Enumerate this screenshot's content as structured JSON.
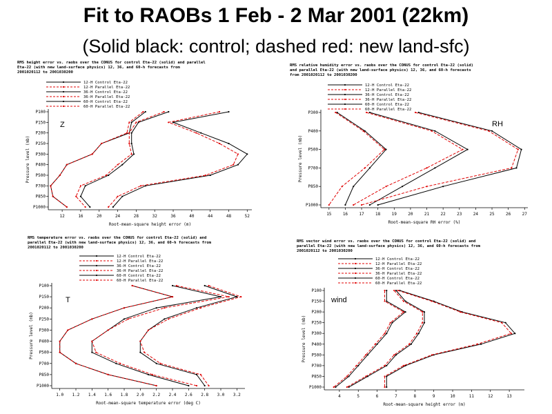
{
  "title": "Fit to RAOBs 1 Feb - 2 Mar 2001 (22km)",
  "subtitle": "(Solid black: control; dashed red: new land-sfc)",
  "colors": {
    "control": "#000000",
    "parallel": "#e00000"
  },
  "legend_labels": [
    "12-H Control Eta-22",
    "12-H Parallel Eta-22",
    "36-H Control Eta-22",
    "36-H Parallel Eta-22",
    "60-H Control Eta-22",
    "60-H Parallel Eta-22"
  ],
  "chart_data": [
    {
      "type": "line",
      "panel_label": "Z",
      "header": [
        "RMS height error vs. raobs over the CONUS for control Eta-22 (solid) and parallel",
        "Eta-22 (with new land-surface physics) 12, 36, and 60-h forecasts from",
        "2001020112 to 2001030200"
      ],
      "xlabel": "Root-mean-square height error (m)",
      "ylabel": "Pressure level (mb)",
      "x_ticks": [
        12,
        16,
        20,
        24,
        28,
        32,
        36,
        40,
        44,
        48,
        52
      ],
      "xlim": [
        9,
        53
      ],
      "y_ticks": [
        "P100",
        "P150",
        "P200",
        "P250",
        "P300",
        "P400",
        "P500",
        "P700",
        "P850",
        "P1000"
      ],
      "series": [
        {
          "name": "12-H Control Eta-22",
          "kind": "control",
          "values": [
            30,
            27,
            26.5,
            20.5,
            18.5,
            13,
            11.5,
            9.5,
            10,
            13
          ]
        },
        {
          "name": "12-H Parallel Eta-22",
          "kind": "parallel",
          "values": [
            29.5,
            26.5,
            26,
            20.5,
            18.5,
            13,
            11.5,
            9.5,
            10,
            13
          ]
        },
        {
          "name": "36-H Control Eta-22",
          "kind": "control",
          "values": [
            35,
            28.5,
            27,
            27,
            27.5,
            25,
            22,
            17,
            16,
            18
          ]
        },
        {
          "name": "36-H Parallel Eta-22",
          "kind": "parallel",
          "values": [
            34,
            28,
            26.5,
            26.5,
            27,
            24,
            21.5,
            16,
            15,
            17
          ]
        },
        {
          "name": "60-H Control Eta-22",
          "kind": "control",
          "values": [
            48,
            36,
            42,
            48,
            52,
            50,
            44,
            30,
            25,
            23
          ]
        },
        {
          "name": "60-H Parallel Eta-22",
          "kind": "parallel",
          "values": [
            46,
            35,
            41,
            46,
            50,
            49,
            43,
            29,
            24,
            22
          ]
        }
      ]
    },
    {
      "type": "line",
      "panel_label": "RH",
      "header": [
        "RMS relative humidity error vs. raobs over the CONUS for control Eta-22 (solid)",
        "and parallel Eta-22 (with new land-surface physics) 12, 36, and 60-h forecasts",
        "from 2001020112 to 2001030200"
      ],
      "xlabel": "Root-mean-square RH error (%)",
      "ylabel": "Pressure level (mb)",
      "x_ticks": [
        15,
        16,
        17,
        18,
        19,
        20,
        21,
        22,
        23,
        24,
        25,
        26,
        27
      ],
      "xlim": [
        14.5,
        27.2
      ],
      "y_ticks": [
        "P300",
        "P400",
        "P500",
        "P700",
        "P850",
        "P1000"
      ],
      "series": [
        {
          "name": "12-H Control Eta-22",
          "kind": "control",
          "values": [
            15.5,
            17.2,
            18.5,
            17.5,
            16.5,
            16
          ]
        },
        {
          "name": "12-H Parallel Eta-22",
          "kind": "parallel",
          "values": [
            15.4,
            17.1,
            18.4,
            17.2,
            15.8,
            15
          ]
        },
        {
          "name": "36-H Control Eta-22",
          "kind": "control",
          "values": [
            17.5,
            21.5,
            23.5,
            21.5,
            19.5,
            17.5
          ]
        },
        {
          "name": "36-H Parallel Eta-22",
          "kind": "parallel",
          "values": [
            17.3,
            21.3,
            23.2,
            21,
            18.5,
            16.5
          ]
        },
        {
          "name": "60-H Control Eta-22",
          "kind": "control",
          "values": [
            20.5,
            25,
            26.8,
            26.5,
            22,
            18
          ]
        },
        {
          "name": "60-H Parallel Eta-22",
          "kind": "parallel",
          "values": [
            20.3,
            24.8,
            26.6,
            26.2,
            21,
            17
          ]
        }
      ]
    },
    {
      "type": "line",
      "panel_label": "T",
      "header": [
        "RMS temperature error vs. raobs over the CONUS for control Eta-22 (solid) and",
        "parallel Eta-22 (with new land-surface physics) 12, 36, and 60-h forecasts from",
        "2001020112 to 2001030200"
      ],
      "xlabel": "Root-mean-square temperature error (deg C)",
      "ylabel": "Pressure level (mb)",
      "x_ticks": [
        "1.0",
        "1.2",
        "1.4",
        "1.6",
        "1.8",
        "2.0",
        "2.2",
        "2.4",
        "2.6",
        "2.8",
        "3.0",
        "3.2"
      ],
      "xlim": [
        0.9,
        3.3
      ],
      "y_ticks": [
        "P100",
        "P150",
        "P200",
        "P250",
        "P300",
        "P400",
        "P500",
        "P700",
        "P850",
        "P1000"
      ],
      "series": [
        {
          "name": "12-H Control Eta-22",
          "kind": "control",
          "values": [
            1.9,
            2.4,
            1.8,
            1.4,
            1.1,
            1.0,
            1.0,
            1.2,
            1.6,
            2.2
          ]
        },
        {
          "name": "12-H Parallel Eta-22",
          "kind": "parallel",
          "values": [
            1.9,
            2.4,
            1.8,
            1.4,
            1.1,
            1.0,
            1.0,
            1.2,
            1.6,
            2.2
          ]
        },
        {
          "name": "36-H Control Eta-22",
          "kind": "control",
          "values": [
            2.4,
            3.0,
            2.2,
            1.8,
            1.6,
            1.4,
            1.4,
            1.7,
            2.1,
            2.6
          ]
        },
        {
          "name": "36-H Parallel Eta-22",
          "kind": "parallel",
          "values": [
            2.45,
            3.1,
            2.3,
            1.85,
            1.6,
            1.4,
            1.45,
            1.75,
            2.15,
            2.7
          ]
        },
        {
          "name": "60-H Control Eta-22",
          "kind": "control",
          "values": [
            2.8,
            3.2,
            2.7,
            2.3,
            2.1,
            2.0,
            2.0,
            2.2,
            2.7,
            2.8
          ]
        },
        {
          "name": "60-H Parallel Eta-22",
          "kind": "parallel",
          "values": [
            2.85,
            3.25,
            2.75,
            2.35,
            2.1,
            2.0,
            2.05,
            2.25,
            2.75,
            2.85
          ]
        }
      ]
    },
    {
      "type": "line",
      "panel_label": "wind",
      "header": [
        "RMS vector wind error vs. raobs over the CONUS for control Eta-22 (solid) and",
        "parallel Eta-22 (with new land-surface physics) 12, 36, and 60-h forecasts from",
        "2001020112 to 2001030200"
      ],
      "xlabel": "Root-mean-square height error (m)",
      "ylabel": "Pressure level (mb)",
      "x_ticks": [
        4,
        5,
        6,
        7,
        8,
        9,
        10,
        11,
        12,
        13
      ],
      "xlim": [
        3.2,
        13.8
      ],
      "y_ticks": [
        "P100",
        "P150",
        "P200",
        "P250",
        "P300",
        "P400",
        "P500",
        "P700",
        "P850",
        "P1000"
      ],
      "series": [
        {
          "name": "12-H Control Eta-22",
          "kind": "control",
          "values": [
            6.5,
            6.5,
            7.5,
            6.8,
            6.5,
            6.0,
            5.5,
            5.0,
            4.5,
            3.8
          ]
        },
        {
          "name": "12-H Parallel Eta-22",
          "kind": "parallel",
          "values": [
            6.4,
            6.4,
            7.4,
            6.7,
            6.4,
            5.9,
            5.4,
            4.9,
            4.4,
            3.7
          ]
        },
        {
          "name": "36-H Control Eta-22",
          "kind": "control",
          "values": [
            7.0,
            7.5,
            8.5,
            8.5,
            8.2,
            7.8,
            7.0,
            6.5,
            5.5,
            4.5
          ]
        },
        {
          "name": "36-H Parallel Eta-22",
          "kind": "parallel",
          "values": [
            6.9,
            7.4,
            8.4,
            8.4,
            8.1,
            7.7,
            6.9,
            6.4,
            5.4,
            4.4
          ]
        },
        {
          "name": "60-H Control Eta-22",
          "kind": "control",
          "values": [
            7.2,
            9.0,
            10.5,
            12.8,
            13.3,
            11.5,
            9.0,
            7.5,
            6.5,
            6.5
          ]
        },
        {
          "name": "60-H Parallel Eta-22",
          "kind": "parallel",
          "values": [
            7.1,
            8.9,
            10.4,
            12.6,
            13.1,
            11.3,
            8.9,
            7.4,
            6.4,
            6.4
          ]
        }
      ]
    }
  ]
}
